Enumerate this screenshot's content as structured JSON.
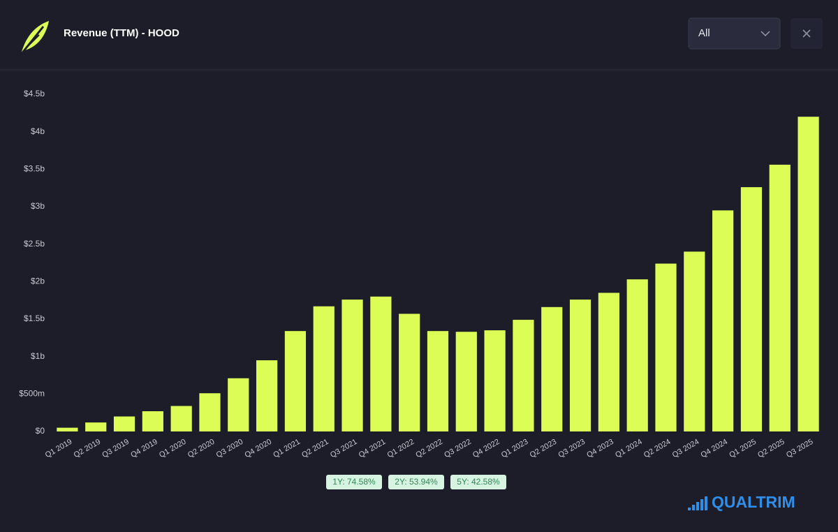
{
  "header": {
    "title": "Revenue (TTM) - HOOD",
    "filter": "All"
  },
  "chart_data": {
    "type": "bar",
    "categories": [
      "Q1 2019",
      "Q2 2019",
      "Q3 2019",
      "Q4 2019",
      "Q1 2020",
      "Q2 2020",
      "Q3 2020",
      "Q4 2020",
      "Q1 2021",
      "Q2 2021",
      "Q3 2021",
      "Q4 2021",
      "Q1 2022",
      "Q2 2022",
      "Q3 2022",
      "Q4 2022",
      "Q1 2023",
      "Q2 2023",
      "Q3 2023",
      "Q4 2023",
      "Q1 2024",
      "Q2 2024",
      "Q3 2024",
      "Q4 2024",
      "Q1 2025",
      "Q2 2025",
      "Q3 2025"
    ],
    "values": [
      0.05,
      0.12,
      0.2,
      0.27,
      0.34,
      0.51,
      0.71,
      0.95,
      1.34,
      1.67,
      1.76,
      1.8,
      1.57,
      1.34,
      1.33,
      1.35,
      1.49,
      1.66,
      1.76,
      1.85,
      2.03,
      2.24,
      2.4,
      2.95,
      3.26,
      3.56,
      4.2
    ],
    "color": "#dbfd55",
    "ylim": [
      0,
      4.5
    ],
    "yticks": [
      {
        "value": 0,
        "label": "$0"
      },
      {
        "value": 0.5,
        "label": "$500m"
      },
      {
        "value": 1,
        "label": "$1b"
      },
      {
        "value": 1.5,
        "label": "$1.5b"
      },
      {
        "value": 2,
        "label": "$2b"
      },
      {
        "value": 2.5,
        "label": "$2.5b"
      },
      {
        "value": 3,
        "label": "$3b"
      },
      {
        "value": 3.5,
        "label": "$3.5b"
      },
      {
        "value": 4,
        "label": "$4b"
      },
      {
        "value": 4.5,
        "label": "$4.5b"
      }
    ],
    "grid": false,
    "annotations": [
      "1Y: 74.58%",
      "2Y: 53.94%",
      "5Y: 42.58%"
    ]
  },
  "footer": {
    "brand": "QUALTRIM"
  }
}
